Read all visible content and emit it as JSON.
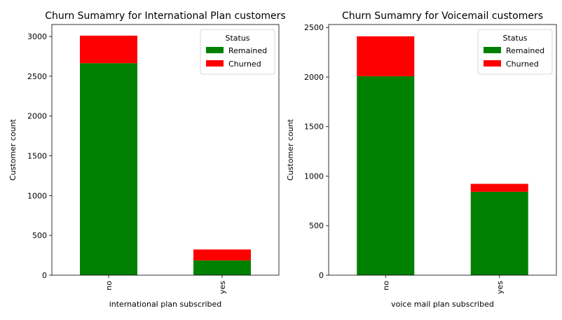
{
  "chart_data": [
    {
      "type": "bar",
      "stacked": true,
      "title": "Churn Sumamry for International Plan customers",
      "xlabel": "international plan subscribed",
      "ylabel": "Customer count",
      "categories": [
        "no",
        "yes"
      ],
      "series": [
        {
          "name": "Remained",
          "color": "#008000",
          "values": [
            2664,
            186
          ]
        },
        {
          "name": "Churned",
          "color": "#ff0000",
          "values": [
            346,
            137
          ]
        }
      ],
      "ylim": [
        0,
        3150
      ],
      "yticks": [
        0,
        500,
        1000,
        1500,
        2000,
        2500,
        3000
      ],
      "legend": {
        "title": "Status",
        "placement": "top-right"
      }
    },
    {
      "type": "bar",
      "stacked": true,
      "title": "Churn Sumamry for Voicemail customers",
      "xlabel": "voice mail plan subscribed",
      "ylabel": "Customer count",
      "categories": [
        "no",
        "yes"
      ],
      "series": [
        {
          "name": "Remained",
          "color": "#008000",
          "values": [
            2008,
            842
          ]
        },
        {
          "name": "Churned",
          "color": "#ff0000",
          "values": [
            403,
            80
          ]
        }
      ],
      "ylim": [
        0,
        2530
      ],
      "yticks": [
        0,
        500,
        1000,
        1500,
        2000,
        2500
      ],
      "legend": {
        "title": "Status",
        "placement": "top-right"
      }
    }
  ]
}
